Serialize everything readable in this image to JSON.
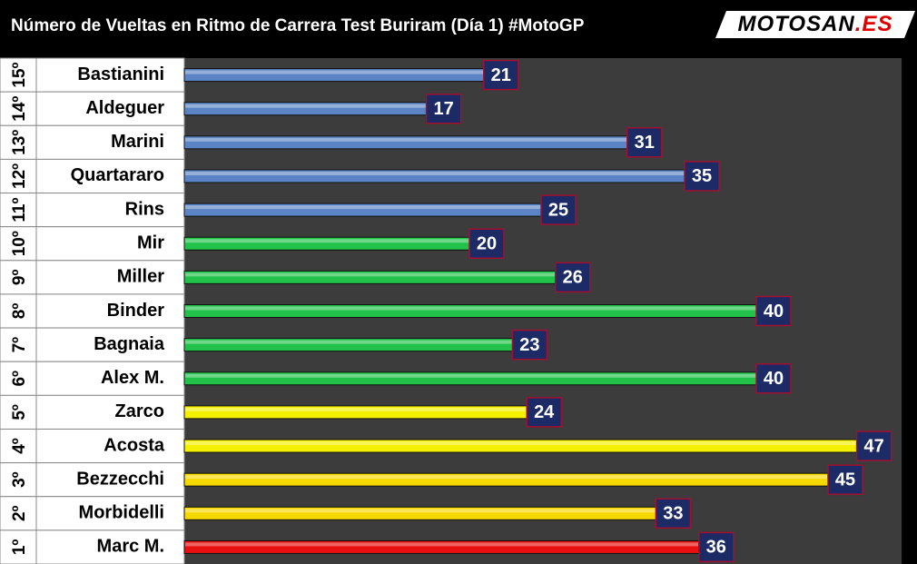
{
  "chart_data": {
    "type": "bar",
    "orientation": "horizontal",
    "title": "Número de Vueltas en Ritmo de Carrera Test Buriram (Día 1) #MotoGP",
    "logo": "MOTOSAN",
    "logo_suffix": ".ES",
    "ranks": [
      "15º",
      "14º",
      "13º",
      "12º",
      "11º",
      "10º",
      "9º",
      "8º",
      "7º",
      "6º",
      "5º",
      "4º",
      "3º",
      "2º",
      "1º"
    ],
    "categories": [
      "Bastianini",
      "Aldeguer",
      "Marini",
      "Quartararo",
      "Rins",
      "Mir",
      "Miller",
      "Binder",
      "Bagnaia",
      "Alex M.",
      "Zarco",
      "Acosta",
      "Bezzecchi",
      "Morbidelli",
      "Marc M."
    ],
    "values": [
      21,
      17,
      31,
      35,
      25,
      20,
      26,
      40,
      23,
      40,
      24,
      47,
      45,
      33,
      36
    ],
    "colors": [
      "#5b84c4",
      "#5b84c4",
      "#5b84c4",
      "#5b84c4",
      "#5b84c4",
      "#22c24a",
      "#22c24a",
      "#22c24a",
      "#22c24a",
      "#22c24a",
      "#f5f000",
      "#f5f000",
      "#f5d800",
      "#f5d800",
      "#e81010"
    ],
    "xlim": [
      0,
      50
    ]
  }
}
